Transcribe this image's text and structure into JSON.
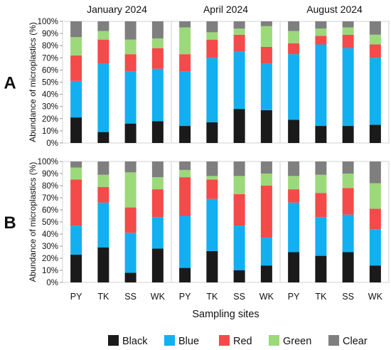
{
  "chart_data": {
    "type": "bar",
    "stacked": true,
    "percent_scale": true,
    "periods": [
      "January 2024",
      "April 2024",
      "August 2024"
    ],
    "categories": [
      "PY",
      "TK",
      "SS",
      "WK"
    ],
    "xlabel": "Sampling sites",
    "ylabel": "Abundance of microplastics (%)",
    "ylim": [
      0,
      100
    ],
    "yticks": [
      "0%",
      "10%",
      "20%",
      "30%",
      "40%",
      "50%",
      "60%",
      "70%",
      "80%",
      "90%",
      "100%"
    ],
    "grid": false,
    "legend_position": "bottom",
    "series_colors": {
      "Black": "#1a1a1a",
      "Blue": "#12b0f0",
      "Red": "#f44a4a",
      "Green": "#9cd97a",
      "Clear": "#7f7f7f"
    },
    "panels": [
      {
        "label": "A",
        "groups": [
          {
            "period": "January 2024",
            "series": [
              {
                "name": "Black",
                "values": [
                  21,
                  9,
                  16,
                  18
                ]
              },
              {
                "name": "Blue",
                "values": [
                  30,
                  56,
                  43,
                  43
                ]
              },
              {
                "name": "Red",
                "values": [
                  21,
                  20,
                  14,
                  17
                ]
              },
              {
                "name": "Green",
                "values": [
                  15,
                  7,
                  12,
                  8
                ]
              },
              {
                "name": "Clear",
                "values": [
                  13,
                  8,
                  15,
                  14
                ]
              }
            ]
          },
          {
            "period": "April 2024",
            "series": [
              {
                "name": "Black",
                "values": [
                  14,
                  17,
                  28,
                  27
                ]
              },
              {
                "name": "Blue",
                "values": [
                  45,
                  53,
                  47,
                  38
                ]
              },
              {
                "name": "Red",
                "values": [
                  14,
                  15,
                  14,
                  14
                ]
              },
              {
                "name": "Green",
                "values": [
                  22,
                  6,
                  5,
                  17
                ]
              },
              {
                "name": "Clear",
                "values": [
                  5,
                  9,
                  6,
                  4
                ]
              }
            ]
          },
          {
            "period": "August 2024",
            "series": [
              {
                "name": "Black",
                "values": [
                  19,
                  14,
                  14,
                  15
                ]
              },
              {
                "name": "Blue",
                "values": [
                  54,
                  67,
                  64,
                  55
                ]
              },
              {
                "name": "Red",
                "values": [
                  9,
                  7,
                  11,
                  11
                ]
              },
              {
                "name": "Green",
                "values": [
                  10,
                  6,
                  6,
                  8
                ]
              },
              {
                "name": "Clear",
                "values": [
                  8,
                  6,
                  5,
                  11
                ]
              }
            ]
          }
        ]
      },
      {
        "label": "B",
        "groups": [
          {
            "period": "January 2024",
            "series": [
              {
                "name": "Black",
                "values": [
                  23,
                  29,
                  8,
                  28
                ]
              },
              {
                "name": "Blue",
                "values": [
                  24,
                  37,
                  33,
                  26
                ]
              },
              {
                "name": "Red",
                "values": [
                  38,
                  13,
                  21,
                  23
                ]
              },
              {
                "name": "Green",
                "values": [
                  10,
                  10,
                  29,
                  10
                ]
              },
              {
                "name": "Clear",
                "values": [
                  5,
                  11,
                  9,
                  13
                ]
              }
            ]
          },
          {
            "period": "April 2024",
            "series": [
              {
                "name": "Black",
                "values": [
                  12,
                  26,
                  10,
                  14
                ]
              },
              {
                "name": "Blue",
                "values": [
                  43,
                  43,
                  37,
                  23
                ]
              },
              {
                "name": "Red",
                "values": [
                  32,
                  16,
                  26,
                  43
                ]
              },
              {
                "name": "Green",
                "values": [
                  6,
                  3,
                  15,
                  10
                ]
              },
              {
                "name": "Clear",
                "values": [
                  7,
                  12,
                  12,
                  10
                ]
              }
            ]
          },
          {
            "period": "August 2024",
            "series": [
              {
                "name": "Black",
                "values": [
                  25,
                  22,
                  25,
                  14
                ]
              },
              {
                "name": "Blue",
                "values": [
                  41,
                  32,
                  31,
                  30
                ]
              },
              {
                "name": "Red",
                "values": [
                  11,
                  20,
                  22,
                  17
                ]
              },
              {
                "name": "Green",
                "values": [
                  11,
                  15,
                  12,
                  21
                ]
              },
              {
                "name": "Clear",
                "values": [
                  12,
                  11,
                  10,
                  18
                ]
              }
            ]
          }
        ]
      }
    ]
  }
}
